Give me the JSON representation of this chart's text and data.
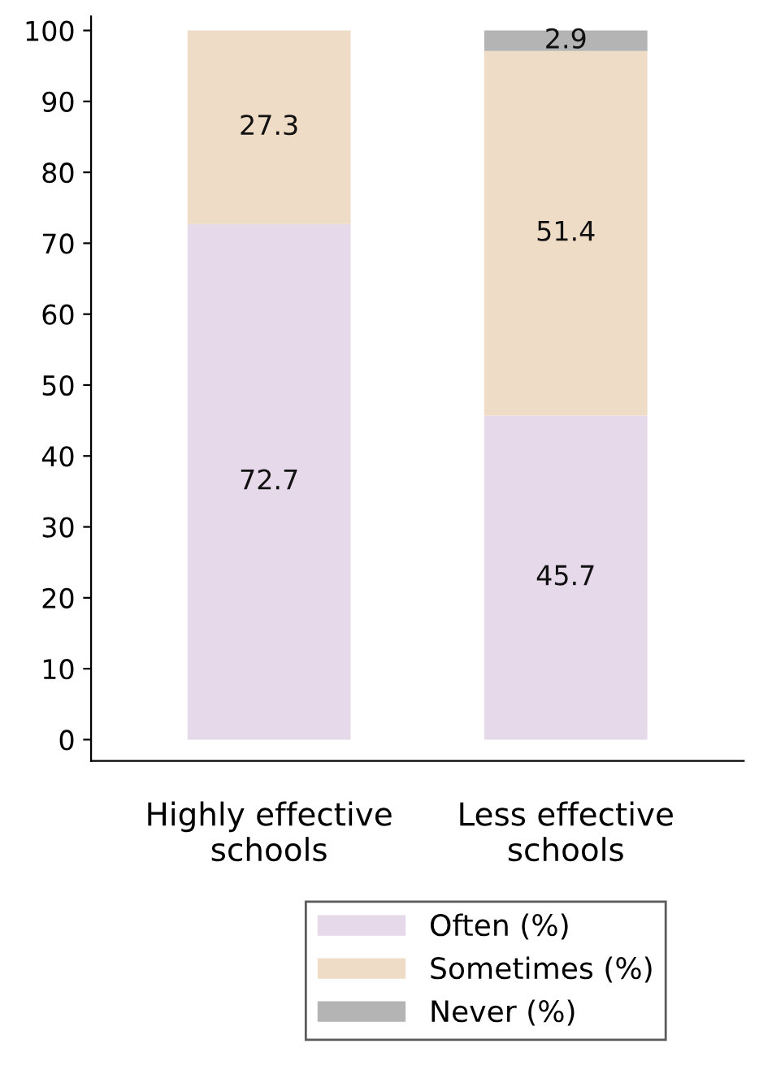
{
  "chart_data": {
    "type": "bar",
    "stacked": true,
    "categories": [
      "Highly effective\nschools",
      "Less effective\nschools"
    ],
    "series": [
      {
        "name": "Often (%)",
        "color": "#e6d9ea",
        "values": [
          72.7,
          45.7
        ]
      },
      {
        "name": "Sometimes (%)",
        "color": "#efdcc6",
        "values": [
          27.3,
          51.4
        ]
      },
      {
        "name": "Never (%)",
        "color": "#b4b4b4",
        "values": [
          null,
          2.9
        ]
      }
    ],
    "data_labels": true,
    "ylim": [
      -3,
      102
    ],
    "yticks": [
      0,
      10,
      20,
      30,
      40,
      50,
      60,
      70,
      80,
      90,
      100
    ],
    "grid": false,
    "legend": "bottom"
  }
}
